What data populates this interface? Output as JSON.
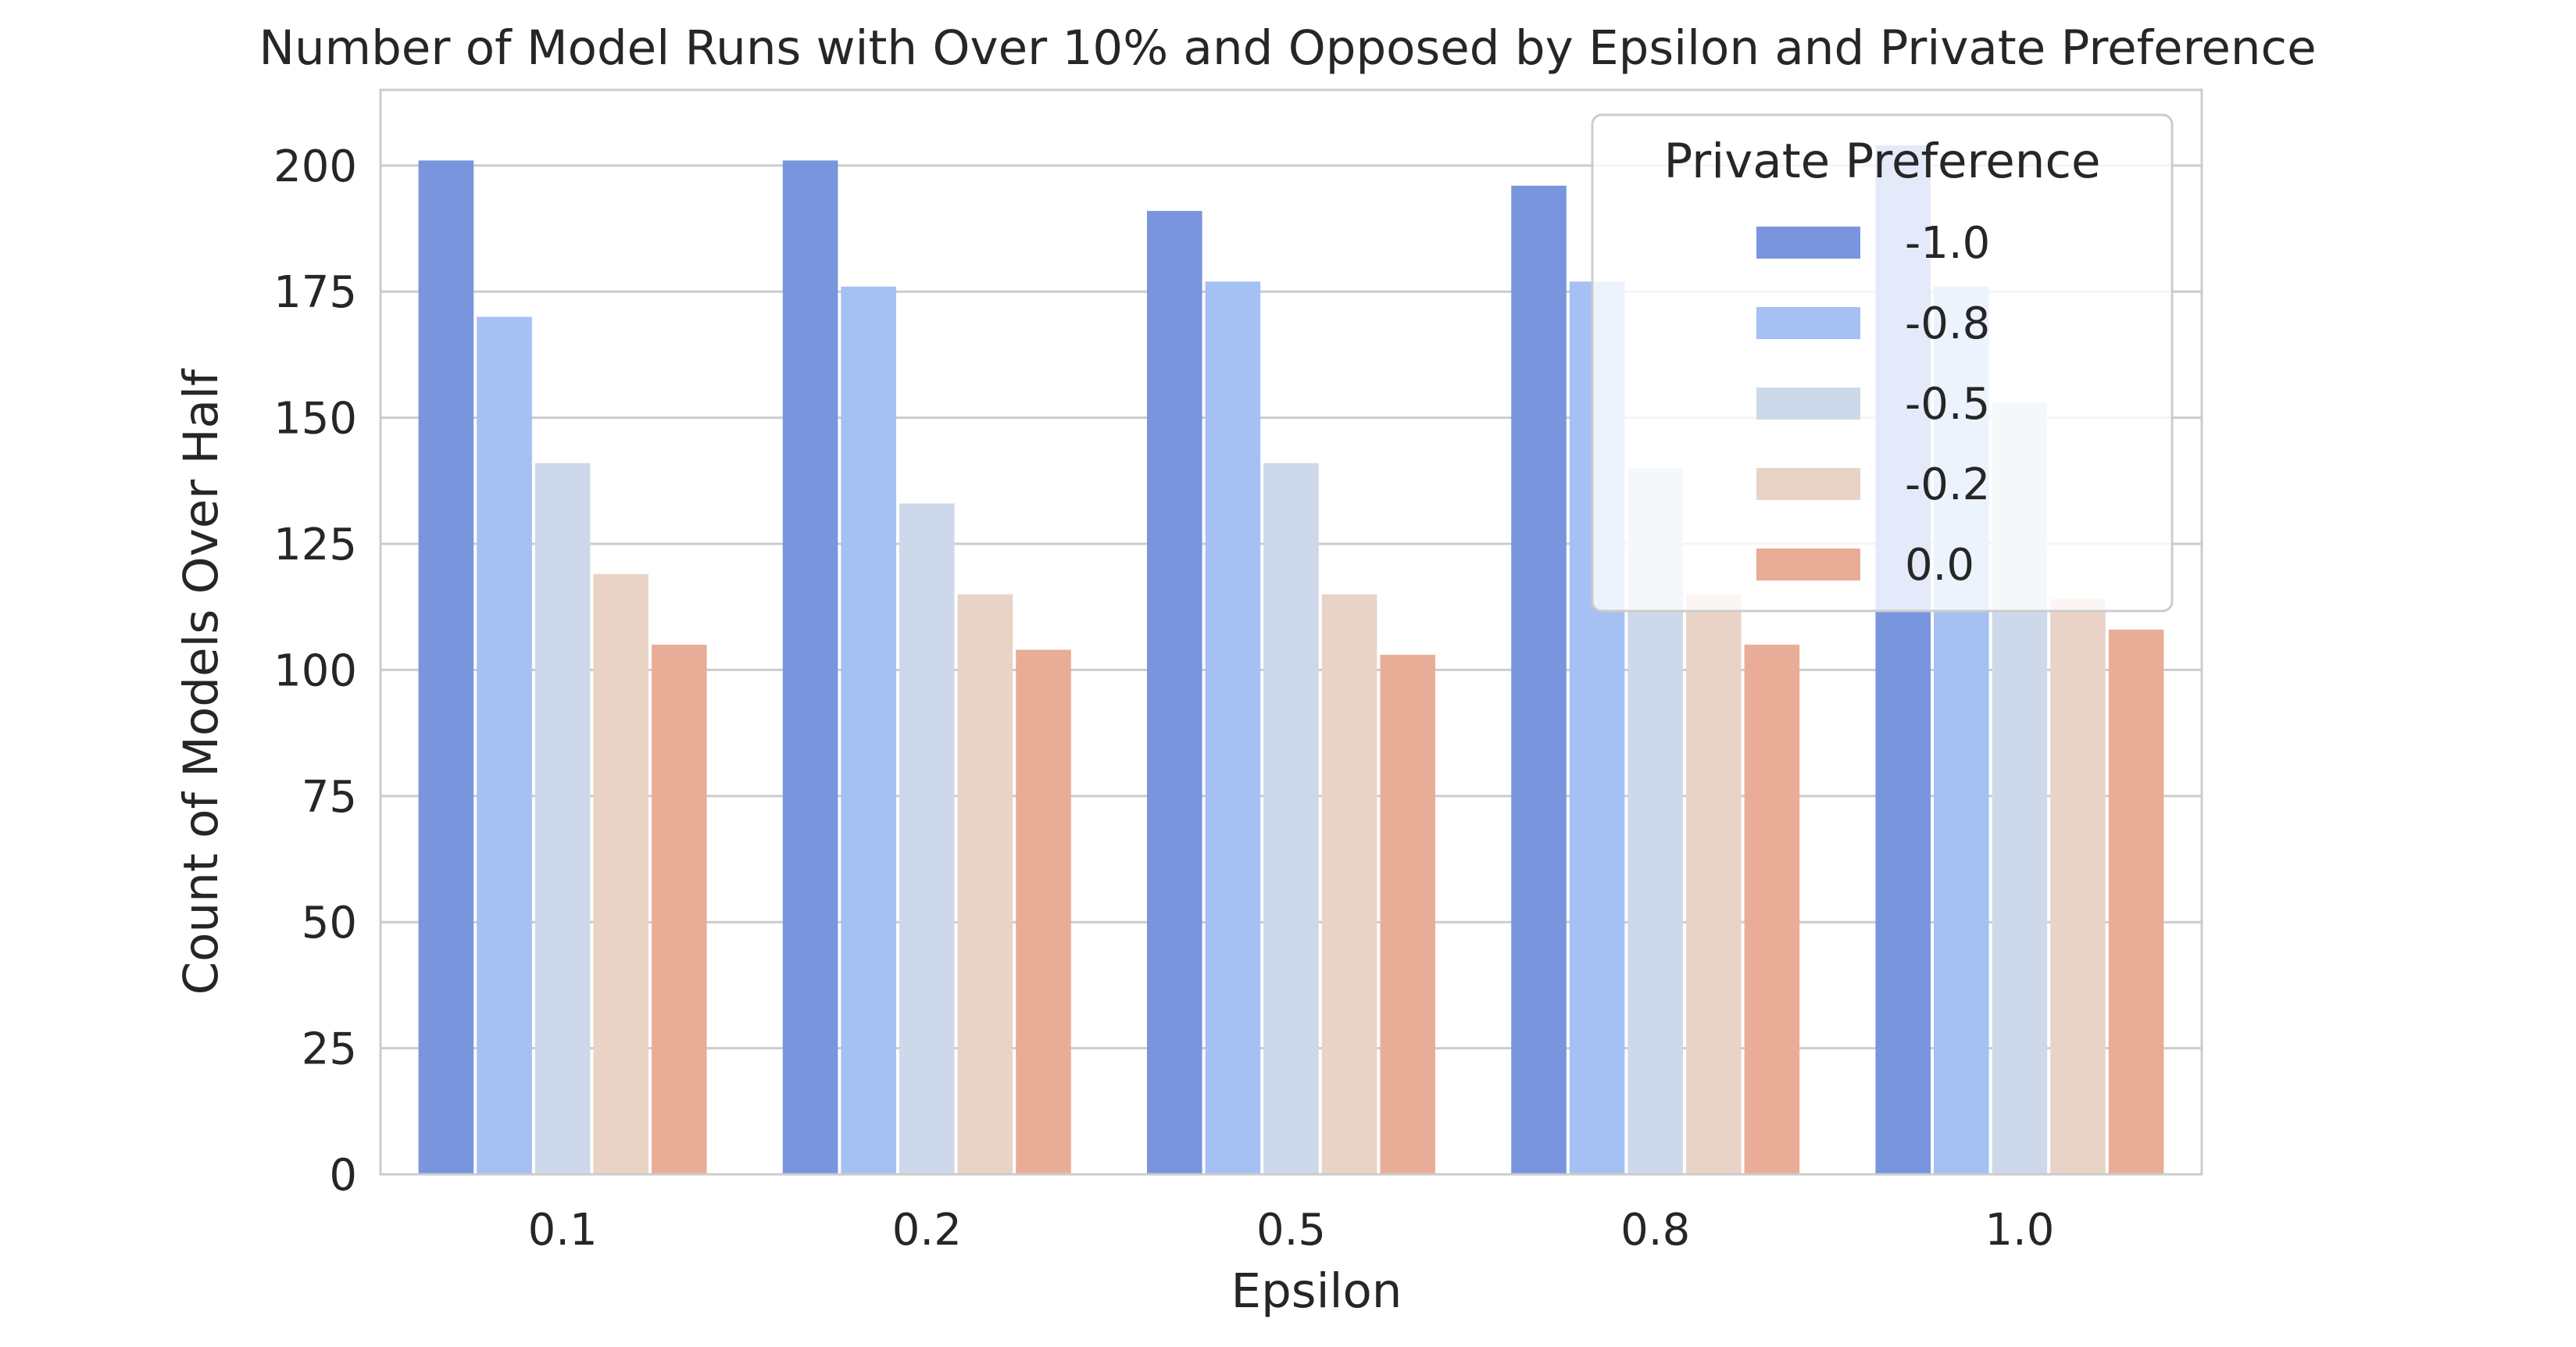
{
  "chart_data": {
    "type": "bar",
    "title": "Number of Model Runs with Over 10% and Opposed by Epsilon and Private Preference",
    "xlabel": "Epsilon",
    "ylabel": "Count of Models Over Half",
    "categories": [
      "0.1",
      "0.2",
      "0.5",
      "0.8",
      "1.0"
    ],
    "ylim": [
      0,
      215
    ],
    "yticks": [
      0,
      25,
      50,
      75,
      100,
      125,
      150,
      175,
      200
    ],
    "grid": true,
    "legend": {
      "title": "Private Preference",
      "placement": "top-right"
    },
    "series": [
      {
        "name": "-1.0",
        "color": "#7895de",
        "values": [
          201,
          201,
          191,
          196,
          204
        ]
      },
      {
        "name": "-0.8",
        "color": "#a5c0f3",
        "values": [
          170,
          176,
          177,
          177,
          176
        ]
      },
      {
        "name": "-0.5",
        "color": "#cdd9ea",
        "values": [
          141,
          133,
          141,
          140,
          153
        ]
      },
      {
        "name": "-0.2",
        "color": "#e9d3c7",
        "values": [
          119,
          115,
          115,
          115,
          114
        ]
      },
      {
        "name": "0.0",
        "color": "#e9ad97",
        "values": [
          105,
          104,
          103,
          105,
          108
        ]
      }
    ]
  }
}
